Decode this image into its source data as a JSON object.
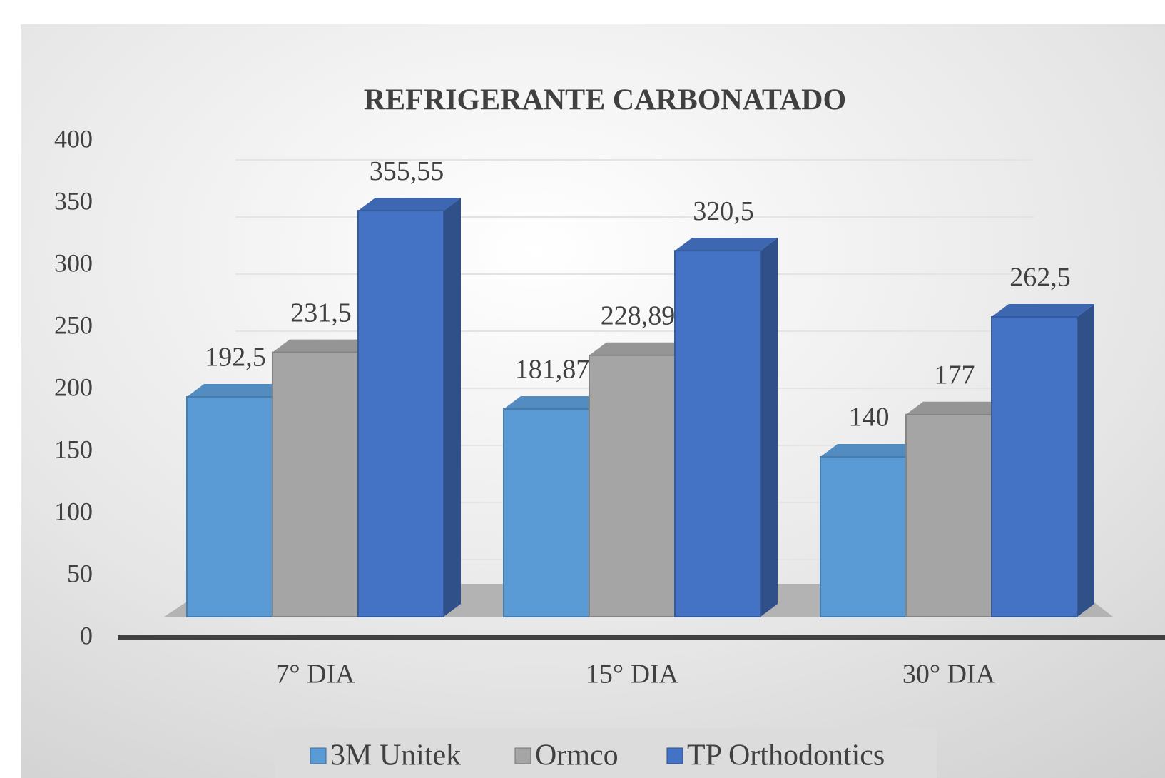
{
  "chart_data": {
    "type": "bar3d",
    "title": "REFRIGERANTE CARBONATADO",
    "categories": [
      "7° DIA",
      "15° DIA",
      "30° DIA"
    ],
    "series": [
      {
        "name": "3M Unitek",
        "color": "#5b9bd5",
        "values": [
          192.5,
          181.87,
          140
        ],
        "value_labels": [
          "192,5",
          "181,87",
          "140"
        ]
      },
      {
        "name": "Ormco",
        "color": "#a5a5a5",
        "values": [
          231.5,
          228.89,
          177
        ],
        "value_labels": [
          "231,5",
          "228,89",
          "177"
        ]
      },
      {
        "name": "TP Orthodontics",
        "color": "#4472c4",
        "values": [
          355.55,
          320.5,
          262.5
        ],
        "value_labels": [
          "355,55",
          "320,5",
          "262,5"
        ]
      }
    ],
    "ylim": [
      0,
      400
    ],
    "yticks": [
      0,
      50,
      100,
      150,
      200,
      250,
      300,
      350,
      400
    ],
    "grid": true,
    "legend": "bottom"
  }
}
